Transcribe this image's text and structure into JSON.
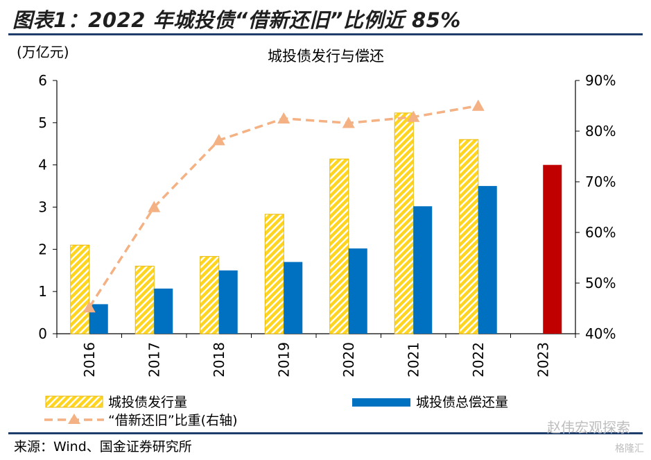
{
  "figure_title": "图表1：2022 年城投债“借新还旧”比例近 85%",
  "source_text": "来源：Wind、国金证券研究所",
  "watermark": "赵伟宏观探索",
  "watermark_sub": "格隆汇",
  "colors": {
    "issuance_fill": "#ffd51f",
    "issuance_stripe": "#ffffff",
    "issuance_border": "#e8b700",
    "repayment": "#0070c0",
    "repayment_2023": "#c00000",
    "ratio_line": "#f4b183",
    "rule": "#1f3d6b"
  },
  "chart_data": {
    "type": "bar",
    "title": "城投债发行与偿还",
    "ylabel": "(万亿元)",
    "y2label": "",
    "categories": [
      "2016",
      "2017",
      "2018",
      "2019",
      "2020",
      "2021",
      "2022",
      "2023"
    ],
    "ylim": [
      0,
      6
    ],
    "yticks": [
      "0",
      "1",
      "2",
      "3",
      "4",
      "5",
      "6"
    ],
    "y2lim": [
      40,
      90
    ],
    "y2ticks": [
      "40%",
      "50%",
      "60%",
      "70%",
      "80%",
      "90%"
    ],
    "series": [
      {
        "name": "城投债发行量",
        "type": "bar",
        "values": [
          2.1,
          1.6,
          1.83,
          2.83,
          4.14,
          5.23,
          4.6,
          null
        ]
      },
      {
        "name": "城投债总偿还量",
        "type": "bar",
        "values": [
          0.7,
          1.07,
          1.5,
          1.7,
          2.02,
          3.02,
          3.5,
          4.0
        ]
      },
      {
        "name": "“借新还旧”比重(右轴)",
        "type": "line",
        "axis": "right",
        "values": [
          45.2,
          65.0,
          78.2,
          82.5,
          81.6,
          82.8,
          85.0,
          null
        ]
      }
    ],
    "grid": false,
    "legend": "bottom"
  }
}
